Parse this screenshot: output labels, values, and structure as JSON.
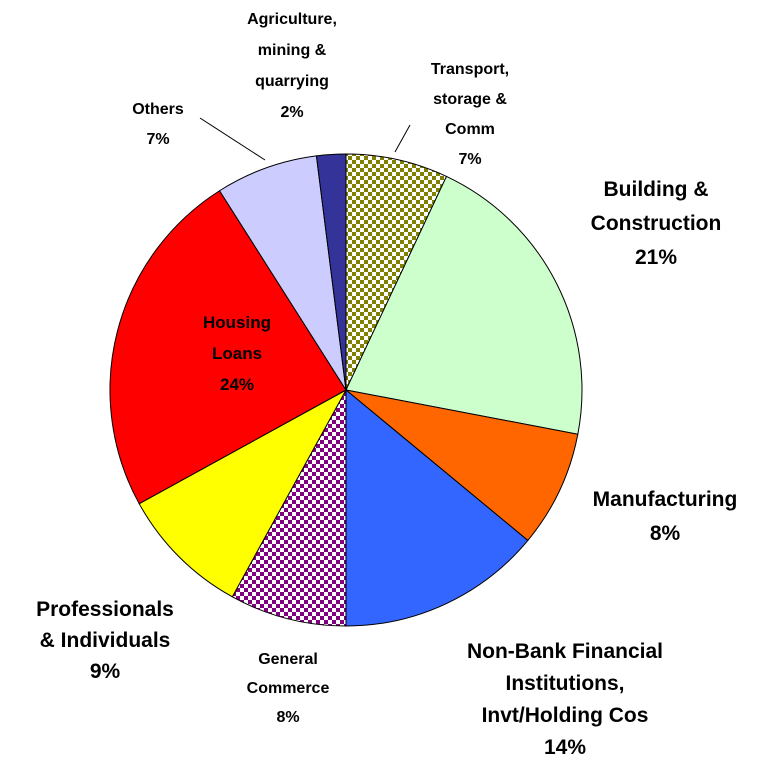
{
  "chart_data": {
    "type": "pie",
    "labels": [
      [
        "Transport,",
        "storage &",
        "Comm"
      ],
      [
        "Building &",
        "Construction"
      ],
      [
        "Manufacturing"
      ],
      [
        "Non-Bank Financial",
        "Institutions,",
        "Invt/Holding Cos"
      ],
      [
        "General",
        "Commerce"
      ],
      [
        "Professionals",
        "& Individuals"
      ],
      [
        "Housing",
        "Loans"
      ],
      [
        "Others"
      ],
      [
        "Agriculture,",
        "mining &",
        "quarrying"
      ]
    ],
    "values": [
      7,
      21,
      8,
      14,
      8,
      9,
      24,
      7,
      2
    ],
    "value_labels": [
      "7%",
      "21%",
      "8%",
      "14%",
      "8%",
      "9%",
      "24%",
      "7%",
      "2%"
    ],
    "colors": [
      "#808000",
      "#ccffcc",
      "#ff6600",
      "#3366ff",
      "#800080",
      "#ffff00",
      "#ff0000",
      "#ccccff",
      "#333399"
    ],
    "patterns": [
      "checkered",
      null,
      null,
      null,
      "checkered",
      null,
      null,
      null,
      null
    ]
  }
}
